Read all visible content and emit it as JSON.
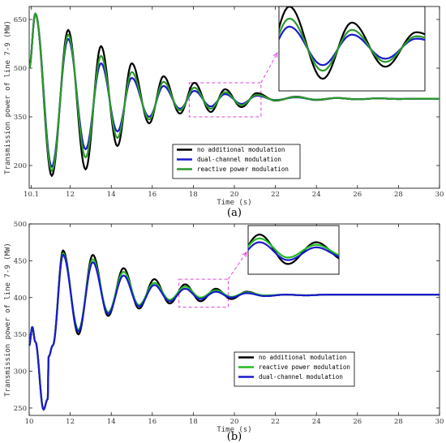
{
  "chart_data": [
    {
      "type": "line",
      "panel_label": "(a)",
      "xlabel": "Time (s)",
      "ylabel": "Transmission power of line 7-9 (MW)",
      "xlim": [
        10,
        30
      ],
      "ylim": [
        130,
        690
      ],
      "x_ticks": [
        10.1,
        12,
        14,
        16,
        18,
        20,
        22,
        24,
        26,
        28,
        30
      ],
      "x_tick_labels": [
        "10.1",
        "12",
        "14",
        "16",
        "18",
        "20",
        "22",
        "24",
        "26",
        "28",
        "30"
      ],
      "y_ticks": [
        200,
        350,
        500,
        650
      ],
      "y_tick_labels": [
        "200",
        "350",
        "500",
        "650"
      ],
      "zoom_window": {
        "x": [
          17.8,
          21.3
        ],
        "y": [
          350,
          455
        ]
      },
      "legend_position": "bottom-center",
      "series": [
        {
          "name": "no additional modulation",
          "color": "#000000",
          "x": [
            10,
            10.3,
            11.1,
            11.9,
            12.75,
            13.5,
            14.3,
            15.0,
            15.85,
            16.55,
            17.35,
            18.05,
            18.85,
            19.55,
            20.35,
            21.1,
            22.0,
            23.0,
            24.0,
            25.0,
            26.0,
            27.0,
            28.0,
            29.0,
            30.0
          ],
          "y": [
            500,
            668,
            168,
            618,
            188,
            568,
            260,
            515,
            330,
            475,
            360,
            455,
            365,
            435,
            380,
            423,
            400,
            412,
            402,
            408,
            404,
            407,
            405,
            406,
            406
          ]
        },
        {
          "name": "dual-channel modulation",
          "color": "#1a1acc",
          "x": [
            10,
            10.3,
            11.1,
            11.9,
            12.75,
            13.5,
            14.3,
            15.0,
            15.85,
            16.55,
            17.35,
            18.05,
            18.85,
            19.55,
            20.35,
            21.1,
            22.0,
            23.0,
            24.0,
            25.0,
            26.0,
            27.0,
            28.0,
            29.0,
            30.0
          ],
          "y": [
            500,
            668,
            196,
            590,
            250,
            515,
            305,
            470,
            350,
            445,
            375,
            430,
            382,
            420,
            390,
            415,
            402,
            410,
            403,
            408,
            404,
            407,
            405,
            406,
            406
          ]
        },
        {
          "name": "reactive power modulation",
          "color": "#2a9a2a",
          "x": [
            10,
            10.3,
            11.1,
            11.9,
            12.75,
            13.5,
            14.3,
            15.0,
            15.85,
            16.55,
            17.35,
            18.05,
            18.85,
            19.55,
            20.35,
            21.1,
            22.0,
            23.0,
            24.0,
            25.0,
            26.0,
            27.0,
            28.0,
            29.0,
            30.0
          ],
          "y": [
            500,
            668,
            183,
            603,
            225,
            538,
            285,
            488,
            342,
            458,
            370,
            440,
            375,
            426,
            386,
            418,
            401,
            411,
            403,
            408,
            404,
            407,
            405,
            406,
            406
          ]
        }
      ]
    },
    {
      "type": "line",
      "panel_label": "(b)",
      "xlabel": "Time (s)",
      "ylabel": "Transmission power of line 7-9 (MW)",
      "xlim": [
        10,
        30
      ],
      "ylim": [
        240,
        500
      ],
      "x_ticks": [
        10,
        12,
        14,
        16,
        18,
        20,
        22,
        24,
        26,
        28,
        30
      ],
      "x_tick_labels": [
        "10",
        "12",
        "14",
        "16",
        "18",
        "20",
        "22",
        "24",
        "26",
        "28",
        "30"
      ],
      "y_ticks": [
        250,
        300,
        350,
        400,
        450,
        500
      ],
      "y_tick_labels": [
        "250",
        "300",
        "350",
        "400",
        "450",
        "500"
      ],
      "zoom_window": {
        "x": [
          17.3,
          19.7
        ],
        "y": [
          387,
          425
        ]
      },
      "legend_position": "bottom-right",
      "series": [
        {
          "name": "no additional modulation",
          "color": "#000000",
          "x": [
            10,
            10.15,
            10.3,
            10.7,
            10.9,
            10.95,
            11.15,
            11.65,
            12.4,
            13.1,
            13.85,
            14.6,
            15.35,
            16.1,
            16.85,
            17.6,
            18.35,
            19.1,
            19.85,
            20.6,
            21.5,
            22.5,
            23.5,
            24.5,
            25.5,
            26.5,
            27.5,
            28.5,
            30.0
          ],
          "y": [
            335,
            360,
            340,
            248,
            262,
            320,
            335,
            464,
            350,
            458,
            375,
            440,
            385,
            425,
            392,
            418,
            395,
            412,
            398,
            408,
            402,
            404,
            403,
            404,
            404,
            404,
            404,
            404,
            404
          ]
        },
        {
          "name": "reactive power modulation",
          "color": "#22bb22",
          "x": [
            10,
            10.15,
            10.3,
            10.7,
            10.9,
            10.95,
            11.15,
            11.65,
            12.4,
            13.1,
            13.85,
            14.6,
            15.35,
            16.1,
            16.85,
            17.6,
            18.35,
            19.1,
            19.85,
            20.6,
            21.5,
            22.5,
            23.5,
            24.5,
            25.5,
            26.5,
            27.5,
            28.5,
            30.0
          ],
          "y": [
            335,
            360,
            340,
            248,
            262,
            320,
            335,
            460,
            356,
            452,
            380,
            435,
            390,
            420,
            397,
            415,
            400,
            410,
            401,
            407,
            403,
            404,
            403,
            404,
            404,
            404,
            404,
            404,
            404
          ]
        },
        {
          "name": "dual-channel modulation",
          "color": "#1a1acc",
          "x": [
            10,
            10.15,
            10.3,
            10.7,
            10.9,
            10.95,
            11.15,
            11.65,
            12.4,
            13.1,
            13.85,
            14.6,
            15.35,
            16.1,
            16.85,
            17.6,
            18.35,
            19.1,
            19.85,
            20.6,
            21.5,
            22.5,
            23.5,
            24.5,
            25.5,
            26.5,
            27.5,
            28.5,
            30.0
          ],
          "y": [
            335,
            360,
            340,
            248,
            262,
            320,
            335,
            458,
            354,
            448,
            378,
            430,
            388,
            417,
            395,
            412,
            398,
            408,
            400,
            406,
            402,
            404,
            403,
            404,
            404,
            404,
            404,
            404,
            404
          ]
        }
      ]
    }
  ]
}
